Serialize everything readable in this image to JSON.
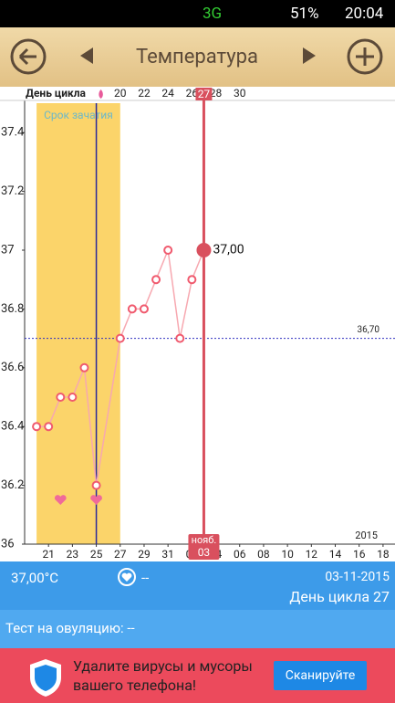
{
  "status_bar": {
    "network": "3G",
    "battery": "51%",
    "time": "20:04"
  },
  "header": {
    "title": "Температура"
  },
  "chart_data": {
    "type": "line",
    "cycle_axis_label": "День цикла",
    "cycle_xlim": [
      12,
      43
    ],
    "cycle_xticks": [
      20,
      22,
      24,
      26,
      28,
      30
    ],
    "cycle_current": 27,
    "zone_label": "Срок зачатия",
    "zone": [
      20,
      27
    ],
    "ovulation_x": 25,
    "x": [
      20,
      21,
      22,
      23,
      24,
      25,
      27,
      28,
      29,
      30,
      31,
      32,
      33,
      34
    ],
    "series": [
      {
        "color": "#f05a6e",
        "values": [
          36.4,
          36.4,
          36.5,
          36.5,
          36.6,
          36.2,
          36.7,
          36.8,
          36.8,
          36.9,
          37.0,
          36.7,
          36.9,
          37.0
        ]
      }
    ],
    "xlim": [
      19,
      50
    ],
    "xticks": [
      {
        "value": 21,
        "label": "21"
      },
      {
        "value": 23,
        "label": "23"
      },
      {
        "value": 25,
        "label": "25"
      },
      {
        "value": 27,
        "label": "27"
      },
      {
        "value": 29,
        "label": "29"
      },
      {
        "value": 31,
        "label": "31"
      },
      {
        "value": 33,
        "label": "02"
      },
      {
        "value": 35,
        "label": "04"
      },
      {
        "value": 37,
        "label": "06"
      },
      {
        "value": 39,
        "label": "08"
      },
      {
        "value": 41,
        "label": "10"
      },
      {
        "value": 43,
        "label": "12"
      },
      {
        "value": 45,
        "label": "14"
      },
      {
        "value": 47,
        "label": "16"
      },
      {
        "value": 49,
        "label": "18"
      }
    ],
    "ylim": [
      36,
      37.5
    ],
    "yticks": [
      36,
      36.2,
      36.4,
      36.6,
      36.8,
      37,
      37.2,
      37.4
    ],
    "cover_line": {
      "value": 36.7,
      "label": "36,70"
    },
    "current": {
      "x": 34,
      "value": 37.0,
      "value_label": "37,00",
      "month": "нояб.",
      "day": "03"
    },
    "hearts": [
      22,
      25
    ],
    "year": "2015"
  },
  "info": {
    "temperature": "37,00°C",
    "mood": "--",
    "date": "03-11-2015",
    "cycle_day": "День цикла 27",
    "ovulation_test": "Тест на овуляцию: --"
  },
  "ad": {
    "text1": "Удалите вирусы и мусоры",
    "text2": "вашего телефона!",
    "button": "Сканируйте"
  }
}
